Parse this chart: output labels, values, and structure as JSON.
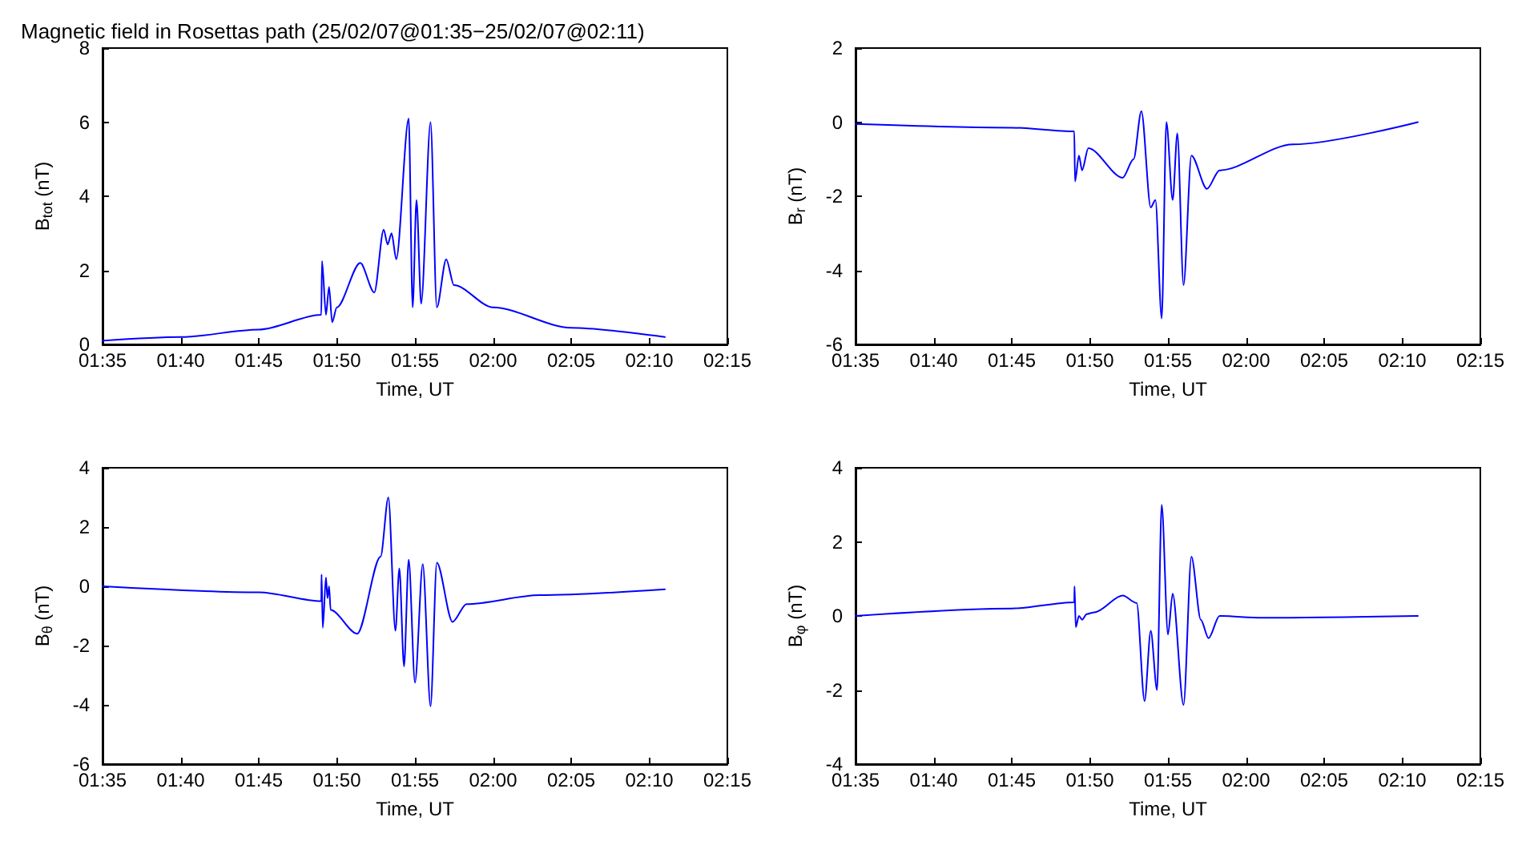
{
  "chart_data": [
    {
      "type": "line",
      "title": "Magnetic field in Rosettas path (25/02/07@01:35−25/02/07@02:11)",
      "xlabel": "Time, UT",
      "ylabel": "B$_{tot}$ (nT)",
      "xlim": [
        1.5833,
        2.25
      ],
      "xticks": [
        {
          "value": 1.5833,
          "label": "01:35"
        },
        {
          "value": 1.6667,
          "label": "01:40"
        },
        {
          "value": 1.75,
          "label": "01:45"
        },
        {
          "value": 1.8333,
          "label": "01:50"
        },
        {
          "value": 1.9167,
          "label": "01:55"
        },
        {
          "value": 2,
          "label": "02:00"
        },
        {
          "value": 2.0833,
          "label": "02:05"
        },
        {
          "value": 2.1667,
          "label": "02:10"
        },
        {
          "value": 2.25,
          "label": "02:15"
        }
      ],
      "ylim": [
        0,
        8
      ],
      "yticks": [
        0,
        2,
        4,
        6,
        8
      ],
      "grid": false,
      "marker": "none",
      "line_style": "solid",
      "series": [
        {
          "color": "#0000ff",
          "x": [
            1.5833,
            1.6667,
            1.75,
            1.8167,
            1.8175,
            1.8217,
            1.825,
            1.8283,
            1.8333,
            1.8583,
            1.8733,
            1.8833,
            1.8875,
            1.8917,
            1.8967,
            1.91,
            1.9142,
            1.9183,
            1.9233,
            1.9333,
            1.94,
            1.95,
            1.9583,
            2.0,
            2.0833,
            2.1833
          ],
          "values": [
            0.1,
            0.2,
            0.4,
            0.8,
            2.25,
            0.8,
            1.55,
            0.6,
            1.0,
            2.2,
            1.4,
            3.1,
            2.7,
            3.0,
            2.3,
            6.1,
            1.0,
            3.9,
            1.1,
            6.0,
            1.0,
            2.3,
            1.6,
            1.0,
            0.45,
            0.2
          ]
        }
      ]
    },
    {
      "type": "line",
      "xlabel": "Time, UT",
      "ylabel": "B$_{r}$ (nT)",
      "xlim": [
        1.5833,
        2.25
      ],
      "xticks": [
        {
          "value": 1.5833,
          "label": "01:35"
        },
        {
          "value": 1.6667,
          "label": "01:40"
        },
        {
          "value": 1.75,
          "label": "01:45"
        },
        {
          "value": 1.8333,
          "label": "01:50"
        },
        {
          "value": 1.9167,
          "label": "01:55"
        },
        {
          "value": 2,
          "label": "02:00"
        },
        {
          "value": 2.0833,
          "label": "02:05"
        },
        {
          "value": 2.1667,
          "label": "02:10"
        },
        {
          "value": 2.25,
          "label": "02:15"
        }
      ],
      "ylim": [
        -6,
        2
      ],
      "yticks": [
        -6,
        -4,
        -2,
        0,
        2
      ],
      "grid": false,
      "marker": "none",
      "line_style": "solid",
      "series": [
        {
          "color": "#0000ff",
          "x": [
            1.5833,
            1.75,
            1.8167,
            1.8175,
            1.8217,
            1.825,
            1.8317,
            1.8683,
            1.88,
            1.8883,
            1.8983,
            1.9033,
            1.91,
            1.915,
            1.9217,
            1.9267,
            1.9333,
            1.9417,
            1.9583,
            1.9717,
            2.05,
            2.1833
          ],
          "values": [
            -0.05,
            -0.15,
            -0.25,
            -1.6,
            -0.9,
            -1.3,
            -0.7,
            -1.5,
            -1.0,
            0.3,
            -2.3,
            -2.1,
            -5.3,
            0.0,
            -2.1,
            -0.3,
            -4.4,
            -0.9,
            -1.8,
            -1.3,
            -0.6,
            0.0
          ]
        }
      ]
    },
    {
      "type": "line",
      "xlabel": "Time, UT",
      "ylabel": "B$_{θ}$ (nT)",
      "xlim": [
        1.5833,
        2.25
      ],
      "xticks": [
        {
          "value": 1.5833,
          "label": "01:35"
        },
        {
          "value": 1.6667,
          "label": "01:40"
        },
        {
          "value": 1.75,
          "label": "01:45"
        },
        {
          "value": 1.8333,
          "label": "01:50"
        },
        {
          "value": 1.9167,
          "label": "01:55"
        },
        {
          "value": 2,
          "label": "02:00"
        },
        {
          "value": 2.0833,
          "label": "02:05"
        },
        {
          "value": 2.1667,
          "label": "02:10"
        },
        {
          "value": 2.25,
          "label": "02:15"
        }
      ],
      "ylim": [
        -6,
        4
      ],
      "yticks": [
        -6,
        -4,
        -2,
        0,
        2,
        4
      ],
      "grid": false,
      "marker": "none",
      "line_style": "solid",
      "series": [
        {
          "color": "#0000ff",
          "x": [
            1.5833,
            1.75,
            1.8167,
            1.817,
            1.8183,
            1.8217,
            1.8233,
            1.825,
            1.8267,
            1.855,
            1.88,
            1.8883,
            1.8958,
            1.9,
            1.905,
            1.91,
            1.9167,
            1.925,
            1.9333,
            1.94,
            1.9567,
            1.9717,
            2.05,
            2.1833
          ],
          "values": [
            0.0,
            -0.2,
            -0.5,
            0.4,
            -1.4,
            0.3,
            -0.4,
            0.0,
            -0.8,
            -1.6,
            1.0,
            3.0,
            -1.5,
            0.6,
            -2.7,
            0.9,
            -3.25,
            0.75,
            -4.05,
            0.8,
            -1.2,
            -0.6,
            -0.3,
            -0.1
          ]
        }
      ]
    },
    {
      "type": "line",
      "xlabel": "Time, UT",
      "ylabel": "B$_{φ}$ (nT)",
      "xlim": [
        1.5833,
        2.25
      ],
      "xticks": [
        {
          "value": 1.5833,
          "label": "01:35"
        },
        {
          "value": 1.6667,
          "label": "01:40"
        },
        {
          "value": 1.75,
          "label": "01:45"
        },
        {
          "value": 1.8333,
          "label": "01:50"
        },
        {
          "value": 1.9167,
          "label": "01:55"
        },
        {
          "value": 2,
          "label": "02:00"
        },
        {
          "value": 2.0833,
          "label": "02:05"
        },
        {
          "value": 2.1667,
          "label": "02:10"
        },
        {
          "value": 2.25,
          "label": "02:15"
        }
      ],
      "ylim": [
        -4,
        4
      ],
      "yticks": [
        -4,
        -2,
        0,
        2,
        4
      ],
      "grid": false,
      "marker": "none",
      "line_style": "solid",
      "series": [
        {
          "color": "#0000ff",
          "x": [
            1.5833,
            1.75,
            1.8167,
            1.817,
            1.8183,
            1.8217,
            1.825,
            1.83,
            1.8383,
            1.8683,
            1.8833,
            1.8917,
            1.8983,
            1.905,
            1.91,
            1.9167,
            1.9217,
            1.9333,
            1.9417,
            1.9517,
            1.96,
            1.9717,
            2.0167,
            2.1833
          ],
          "values": [
            0.0,
            0.2,
            0.37,
            0.8,
            -0.3,
            0.0,
            -0.1,
            0.05,
            0.1,
            0.55,
            0.35,
            -2.3,
            -0.4,
            -2.0,
            3.0,
            -0.5,
            0.6,
            -2.4,
            1.6,
            -0.1,
            -0.6,
            0.0,
            -0.05,
            0.0
          ]
        }
      ]
    }
  ]
}
